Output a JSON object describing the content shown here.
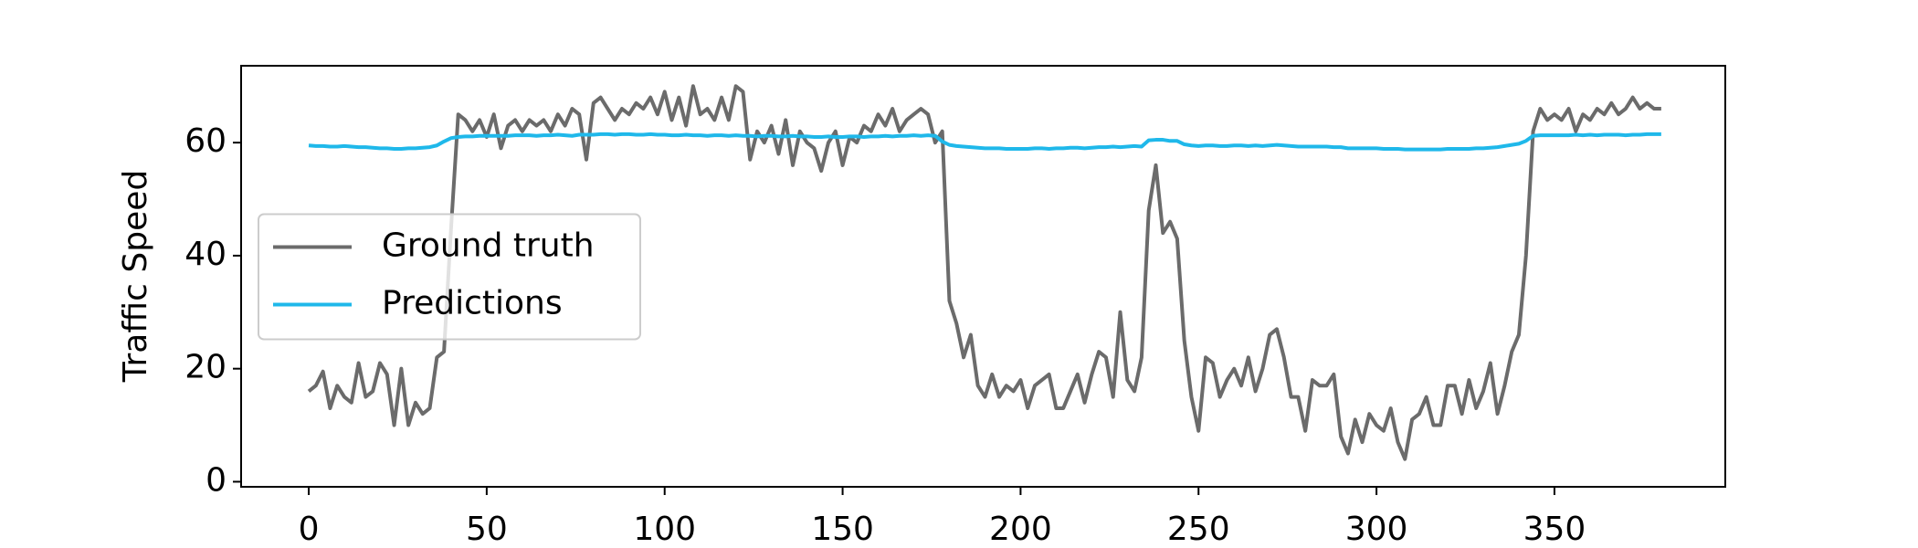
{
  "chart_data": {
    "type": "line",
    "ylabel": "Traffic Speed",
    "x": [
      0,
      2,
      4,
      6,
      8,
      10,
      12,
      14,
      16,
      18,
      20,
      22,
      24,
      26,
      28,
      30,
      32,
      34,
      36,
      38,
      40,
      42,
      44,
      46,
      48,
      50,
      52,
      54,
      56,
      58,
      60,
      62,
      64,
      66,
      68,
      70,
      72,
      74,
      76,
      78,
      80,
      82,
      84,
      86,
      88,
      90,
      92,
      94,
      96,
      98,
      100,
      102,
      104,
      106,
      108,
      110,
      112,
      114,
      116,
      118,
      120,
      122,
      124,
      126,
      128,
      130,
      132,
      134,
      136,
      138,
      140,
      142,
      144,
      146,
      148,
      150,
      152,
      154,
      156,
      158,
      160,
      162,
      164,
      166,
      168,
      170,
      172,
      174,
      176,
      178,
      180,
      182,
      184,
      186,
      188,
      190,
      192,
      194,
      196,
      198,
      200,
      202,
      204,
      206,
      208,
      210,
      212,
      214,
      216,
      218,
      220,
      222,
      224,
      226,
      228,
      230,
      232,
      234,
      236,
      238,
      240,
      242,
      244,
      246,
      248,
      250,
      252,
      254,
      256,
      258,
      260,
      262,
      264,
      266,
      268,
      270,
      272,
      274,
      276,
      278,
      280,
      282,
      284,
      286,
      288,
      290,
      292,
      294,
      296,
      298,
      300,
      302,
      304,
      306,
      308,
      310,
      312,
      314,
      316,
      318,
      320,
      322,
      324,
      326,
      328,
      330,
      332,
      334,
      336,
      338,
      340,
      342,
      344,
      346,
      348,
      350,
      352,
      354,
      356,
      358,
      360,
      362,
      364,
      366,
      368,
      370,
      372,
      374,
      376,
      378,
      380
    ],
    "series": [
      {
        "name": "Ground truth",
        "color": "#6b6b6b",
        "values": [
          16,
          17,
          19.5,
          13,
          17,
          15,
          14,
          21,
          15,
          16,
          21,
          19,
          10,
          20,
          10,
          14,
          12,
          13,
          22,
          23,
          45,
          65,
          64,
          62,
          64,
          61,
          65,
          59,
          63,
          64,
          62,
          64,
          63,
          64,
          62,
          65,
          63,
          66,
          65,
          57,
          67,
          68,
          66,
          64,
          66,
          65,
          67,
          66,
          68,
          65,
          69,
          64,
          68,
          63,
          70,
          65,
          66,
          64,
          68,
          64,
          70,
          69,
          57,
          62,
          60,
          63,
          58,
          64,
          56,
          62,
          60,
          59,
          55,
          60,
          62,
          56,
          61,
          60,
          63,
          62,
          65,
          63,
          66,
          62,
          64,
          65,
          66,
          65,
          60,
          62,
          32,
          28,
          22,
          26,
          17,
          15,
          19,
          15,
          17,
          16,
          18,
          13,
          17,
          18,
          19,
          13,
          13,
          16,
          19,
          14,
          19,
          23,
          22,
          15,
          30,
          18,
          16,
          22,
          48,
          56,
          44,
          46,
          43,
          25,
          15,
          9,
          22,
          21,
          15,
          18,
          20,
          17,
          22,
          16,
          20,
          26,
          27,
          22,
          15,
          15,
          9,
          18,
          17,
          17,
          19,
          8,
          5,
          11,
          7,
          12,
          10,
          9,
          13,
          7,
          4,
          11,
          12,
          15,
          10,
          10,
          17,
          17,
          12,
          18,
          13,
          16,
          21,
          12,
          17,
          23,
          26,
          40,
          62,
          66,
          64,
          65,
          64,
          66,
          62,
          65,
          64,
          66,
          65,
          67,
          65,
          66,
          68,
          66,
          67,
          66,
          66
        ]
      },
      {
        "name": "Predictions",
        "color": "#1fb8ea",
        "values": [
          59.5,
          59.4,
          59.4,
          59.3,
          59.3,
          59.4,
          59.3,
          59.2,
          59.2,
          59.1,
          59.0,
          59.0,
          58.9,
          58.9,
          59.0,
          59.0,
          59.1,
          59.2,
          59.5,
          60.2,
          60.8,
          61.0,
          61.1,
          61.1,
          61.2,
          61.2,
          61.2,
          61.2,
          61.2,
          61.3,
          61.3,
          61.3,
          61.2,
          61.3,
          61.3,
          61.4,
          61.3,
          61.2,
          61.4,
          61.4,
          61.4,
          61.5,
          61.5,
          61.4,
          61.5,
          61.5,
          61.4,
          61.4,
          61.5,
          61.4,
          61.4,
          61.3,
          61.3,
          61.4,
          61.3,
          61.3,
          61.2,
          61.3,
          61.3,
          61.2,
          61.3,
          61.2,
          61.2,
          61.1,
          61.2,
          61.2,
          61.1,
          61.1,
          61.2,
          61.1,
          61.1,
          61.0,
          61.0,
          61.1,
          61.0,
          61.0,
          61.1,
          61.1,
          61.0,
          61.1,
          61.1,
          61.2,
          61.1,
          61.2,
          61.2,
          61.3,
          61.2,
          61.3,
          61.2,
          60.2,
          59.6,
          59.4,
          59.3,
          59.2,
          59.1,
          59.0,
          59.0,
          59.0,
          58.9,
          58.9,
          58.9,
          58.9,
          59.0,
          59.0,
          58.9,
          59.0,
          59.0,
          59.1,
          59.1,
          59.0,
          59.1,
          59.2,
          59.2,
          59.3,
          59.2,
          59.3,
          59.4,
          59.3,
          60.4,
          60.5,
          60.5,
          60.3,
          60.3,
          59.7,
          59.5,
          59.4,
          59.5,
          59.5,
          59.4,
          59.4,
          59.5,
          59.5,
          59.4,
          59.5,
          59.4,
          59.5,
          59.6,
          59.5,
          59.4,
          59.3,
          59.3,
          59.3,
          59.3,
          59.3,
          59.2,
          59.2,
          59.0,
          59.0,
          59.0,
          59.0,
          59.0,
          58.9,
          58.9,
          58.9,
          58.8,
          58.8,
          58.8,
          58.8,
          58.8,
          58.8,
          58.9,
          58.9,
          58.9,
          58.9,
          59.0,
          59.0,
          59.1,
          59.2,
          59.4,
          59.6,
          59.8,
          60.3,
          61.2,
          61.3,
          61.3,
          61.3,
          61.3,
          61.3,
          61.4,
          61.3,
          61.4,
          61.3,
          61.4,
          61.4,
          61.4,
          61.3,
          61.4,
          61.4,
          61.5,
          61.5,
          61.5
        ]
      }
    ],
    "xlim": [
      -19,
      398
    ],
    "ylim": [
      -0.9,
      73.6
    ],
    "xticks": [
      0,
      50,
      100,
      150,
      200,
      250,
      300,
      350
    ],
    "yticks": [
      0,
      20,
      40,
      60
    ],
    "grid": false,
    "legend": "center left"
  }
}
